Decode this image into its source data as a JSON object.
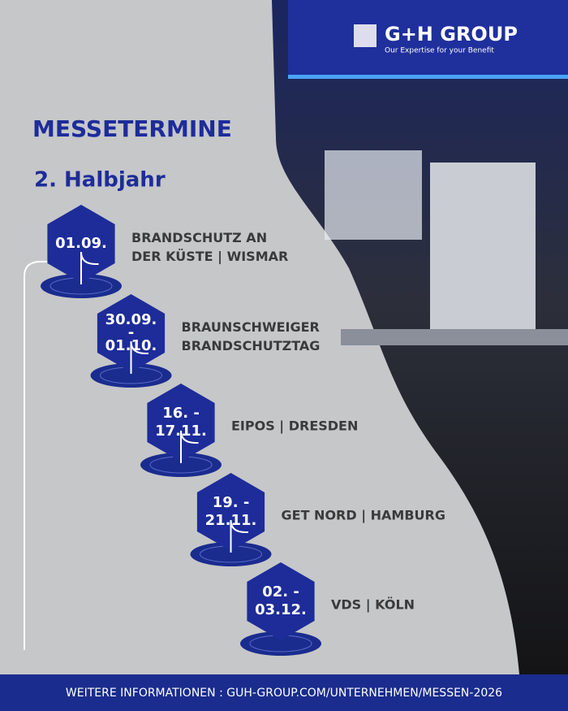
{
  "header": {
    "title": "MESSETERMINE",
    "subtitle": "2. Halbjahr"
  },
  "photo": {
    "brand": "G+H GROUP",
    "tagline": "Our Expertise for your Benefit"
  },
  "events": [
    {
      "date_lines": [
        "01.09."
      ],
      "title_lines": [
        "BRANDSCHUTZ AN",
        "DER KÜSTE | WISMAR"
      ]
    },
    {
      "date_lines": [
        "30.09.",
        "-",
        "01.10."
      ],
      "title_lines": [
        "BRAUNSCHWEIGER",
        "BRANDSCHUTZTAG"
      ]
    },
    {
      "date_lines": [
        "16. -",
        "17.11."
      ],
      "title_lines": [
        "EIPOS | DRESDEN"
      ]
    },
    {
      "date_lines": [
        "19. -",
        "21.11."
      ],
      "title_lines": [
        "GET NORD | HAMBURG"
      ]
    },
    {
      "date_lines": [
        "02. -",
        "03.12."
      ],
      "title_lines": [
        "VDS | KÖLN"
      ]
    }
  ],
  "footer": {
    "text": "WEITERE INFORMATIONEN :  GUH-GROUP.COM/UNTERNEHMEN/MESSEN-2026"
  }
}
